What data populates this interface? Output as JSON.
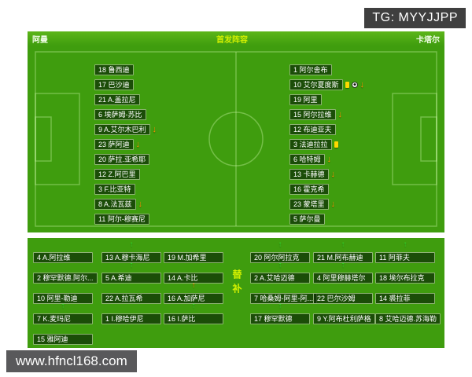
{
  "badge": {
    "text": "TG: MYYJJPP"
  },
  "watermark": {
    "text": "www.hfncl168.com"
  },
  "header": {
    "home_team": "阿曼",
    "title": "首发阵容",
    "away_team": "卡塔尔"
  },
  "subs_label": "替补",
  "colors": {
    "pitch_green": "#3f9d0e",
    "accent_yellow": "#d3f000",
    "sub_on_green": "#35e02e",
    "sub_off_orange": "#ff9100",
    "card_yellow": "#ffd800",
    "badge_gray": "#3f3f3f",
    "watermark_gray": "#59595b"
  },
  "home_lineup": [
    {
      "num": "18",
      "name": "鲁西迪",
      "icons": []
    },
    {
      "num": "17",
      "name": "巴沙迪",
      "icons": []
    },
    {
      "num": "21",
      "name": "A.盖拉尼",
      "icons": []
    },
    {
      "num": "6",
      "name": "埃萨姆-苏比",
      "icons": []
    },
    {
      "num": "9",
      "name": "A.艾尔木巴利",
      "icons": [
        "sub-off"
      ]
    },
    {
      "num": "23",
      "name": "萨阿迪",
      "icons": [
        "sub-off"
      ]
    },
    {
      "num": "20",
      "name": "萨拉.亚希耶",
      "icons": []
    },
    {
      "num": "12",
      "name": "Z.阿巴里",
      "icons": []
    },
    {
      "num": "3",
      "name": "F.比亚特",
      "icons": []
    },
    {
      "num": "8",
      "name": "A.法瓦兹",
      "icons": [
        "sub-off"
      ]
    },
    {
      "num": "11",
      "name": "阿尔-穆赛尼",
      "icons": []
    }
  ],
  "away_lineup": [
    {
      "num": "1",
      "name": "阿尔舍布",
      "icons": []
    },
    {
      "num": "10",
      "name": "艾尔夏度斯",
      "icons": [
        "yellow-card",
        "goal",
        "sub-off"
      ]
    },
    {
      "num": "19",
      "name": "阿里",
      "icons": []
    },
    {
      "num": "15",
      "name": "阿尔拉维",
      "icons": [
        "sub-off"
      ]
    },
    {
      "num": "12",
      "name": "布迪亚夫",
      "icons": []
    },
    {
      "num": "3",
      "name": "法迪拉拉",
      "icons": [
        "yellow-card"
      ]
    },
    {
      "num": "6",
      "name": "哈特姆",
      "icons": [
        "sub-off"
      ]
    },
    {
      "num": "13",
      "name": "卡赫德",
      "icons": [
        "sub-off"
      ]
    },
    {
      "num": "16",
      "name": "霍克希",
      "icons": []
    },
    {
      "num": "23",
      "name": "蒙塔里",
      "icons": [
        "sub-off"
      ]
    },
    {
      "num": "5",
      "name": "萨尔曼",
      "icons": []
    }
  ],
  "home_subs": [
    [
      {
        "num": "4",
        "name": "A.阿拉维",
        "arrow": ""
      },
      {
        "num": "13",
        "name": "A.穆卡海尼",
        "arrow": "green"
      },
      {
        "num": "19",
        "name": "M.加希里",
        "arrow": ""
      }
    ],
    [
      {
        "num": "2",
        "name": "穆罕默德.阿尔...",
        "arrow": ""
      },
      {
        "num": "5",
        "name": "A.希迪",
        "arrow": "green"
      },
      {
        "num": "14",
        "name": "A.卡比",
        "arrow": ""
      }
    ],
    [
      {
        "num": "10",
        "name": "阿里-勒迪",
        "arrow": ""
      },
      {
        "num": "22",
        "name": "A.拉瓦希",
        "arrow": ""
      },
      {
        "num": "16",
        "name": "A.加萨尼",
        "arrow": "orange"
      }
    ],
    [
      {
        "num": "7",
        "name": "K.麦玛尼",
        "arrow": "green"
      },
      {
        "num": "1",
        "name": "I.穆哈伊尼",
        "arrow": ""
      },
      {
        "num": "16",
        "name": "I.萨比",
        "arrow": "green"
      }
    ],
    [
      {
        "num": "15",
        "name": "雅阿迪",
        "arrow": ""
      }
    ]
  ],
  "away_subs": [
    [
      {
        "num": "20",
        "name": "阿尔阿拉克",
        "arrow": "green"
      },
      {
        "num": "21",
        "name": "M.阿布赫迪",
        "arrow": "green"
      },
      {
        "num": "11",
        "name": "阿菲夫",
        "arrow": "green"
      }
    ],
    [
      {
        "num": "2",
        "name": "A.艾哈迈德",
        "arrow": "green"
      },
      {
        "num": "4",
        "name": "阿里穆赫塔尔",
        "arrow": "green"
      },
      {
        "num": "18",
        "name": "埃尔布拉克",
        "arrow": ""
      }
    ],
    [
      {
        "num": "7",
        "name": "哈桑姆-阿里-阿...",
        "arrow": ""
      },
      {
        "num": "22",
        "name": "巴尔沙姆",
        "arrow": ""
      },
      {
        "num": "14",
        "name": "裘拉菲",
        "arrow": ""
      }
    ],
    [
      {
        "num": "17",
        "name": "穆罕默德",
        "arrow": "green"
      },
      {
        "num": "9",
        "name": "Y.阿布杜利萨格",
        "arrow": ""
      },
      {
        "num": "8",
        "name": "艾哈迈德.苏海勒",
        "arrow": ""
      }
    ]
  ]
}
